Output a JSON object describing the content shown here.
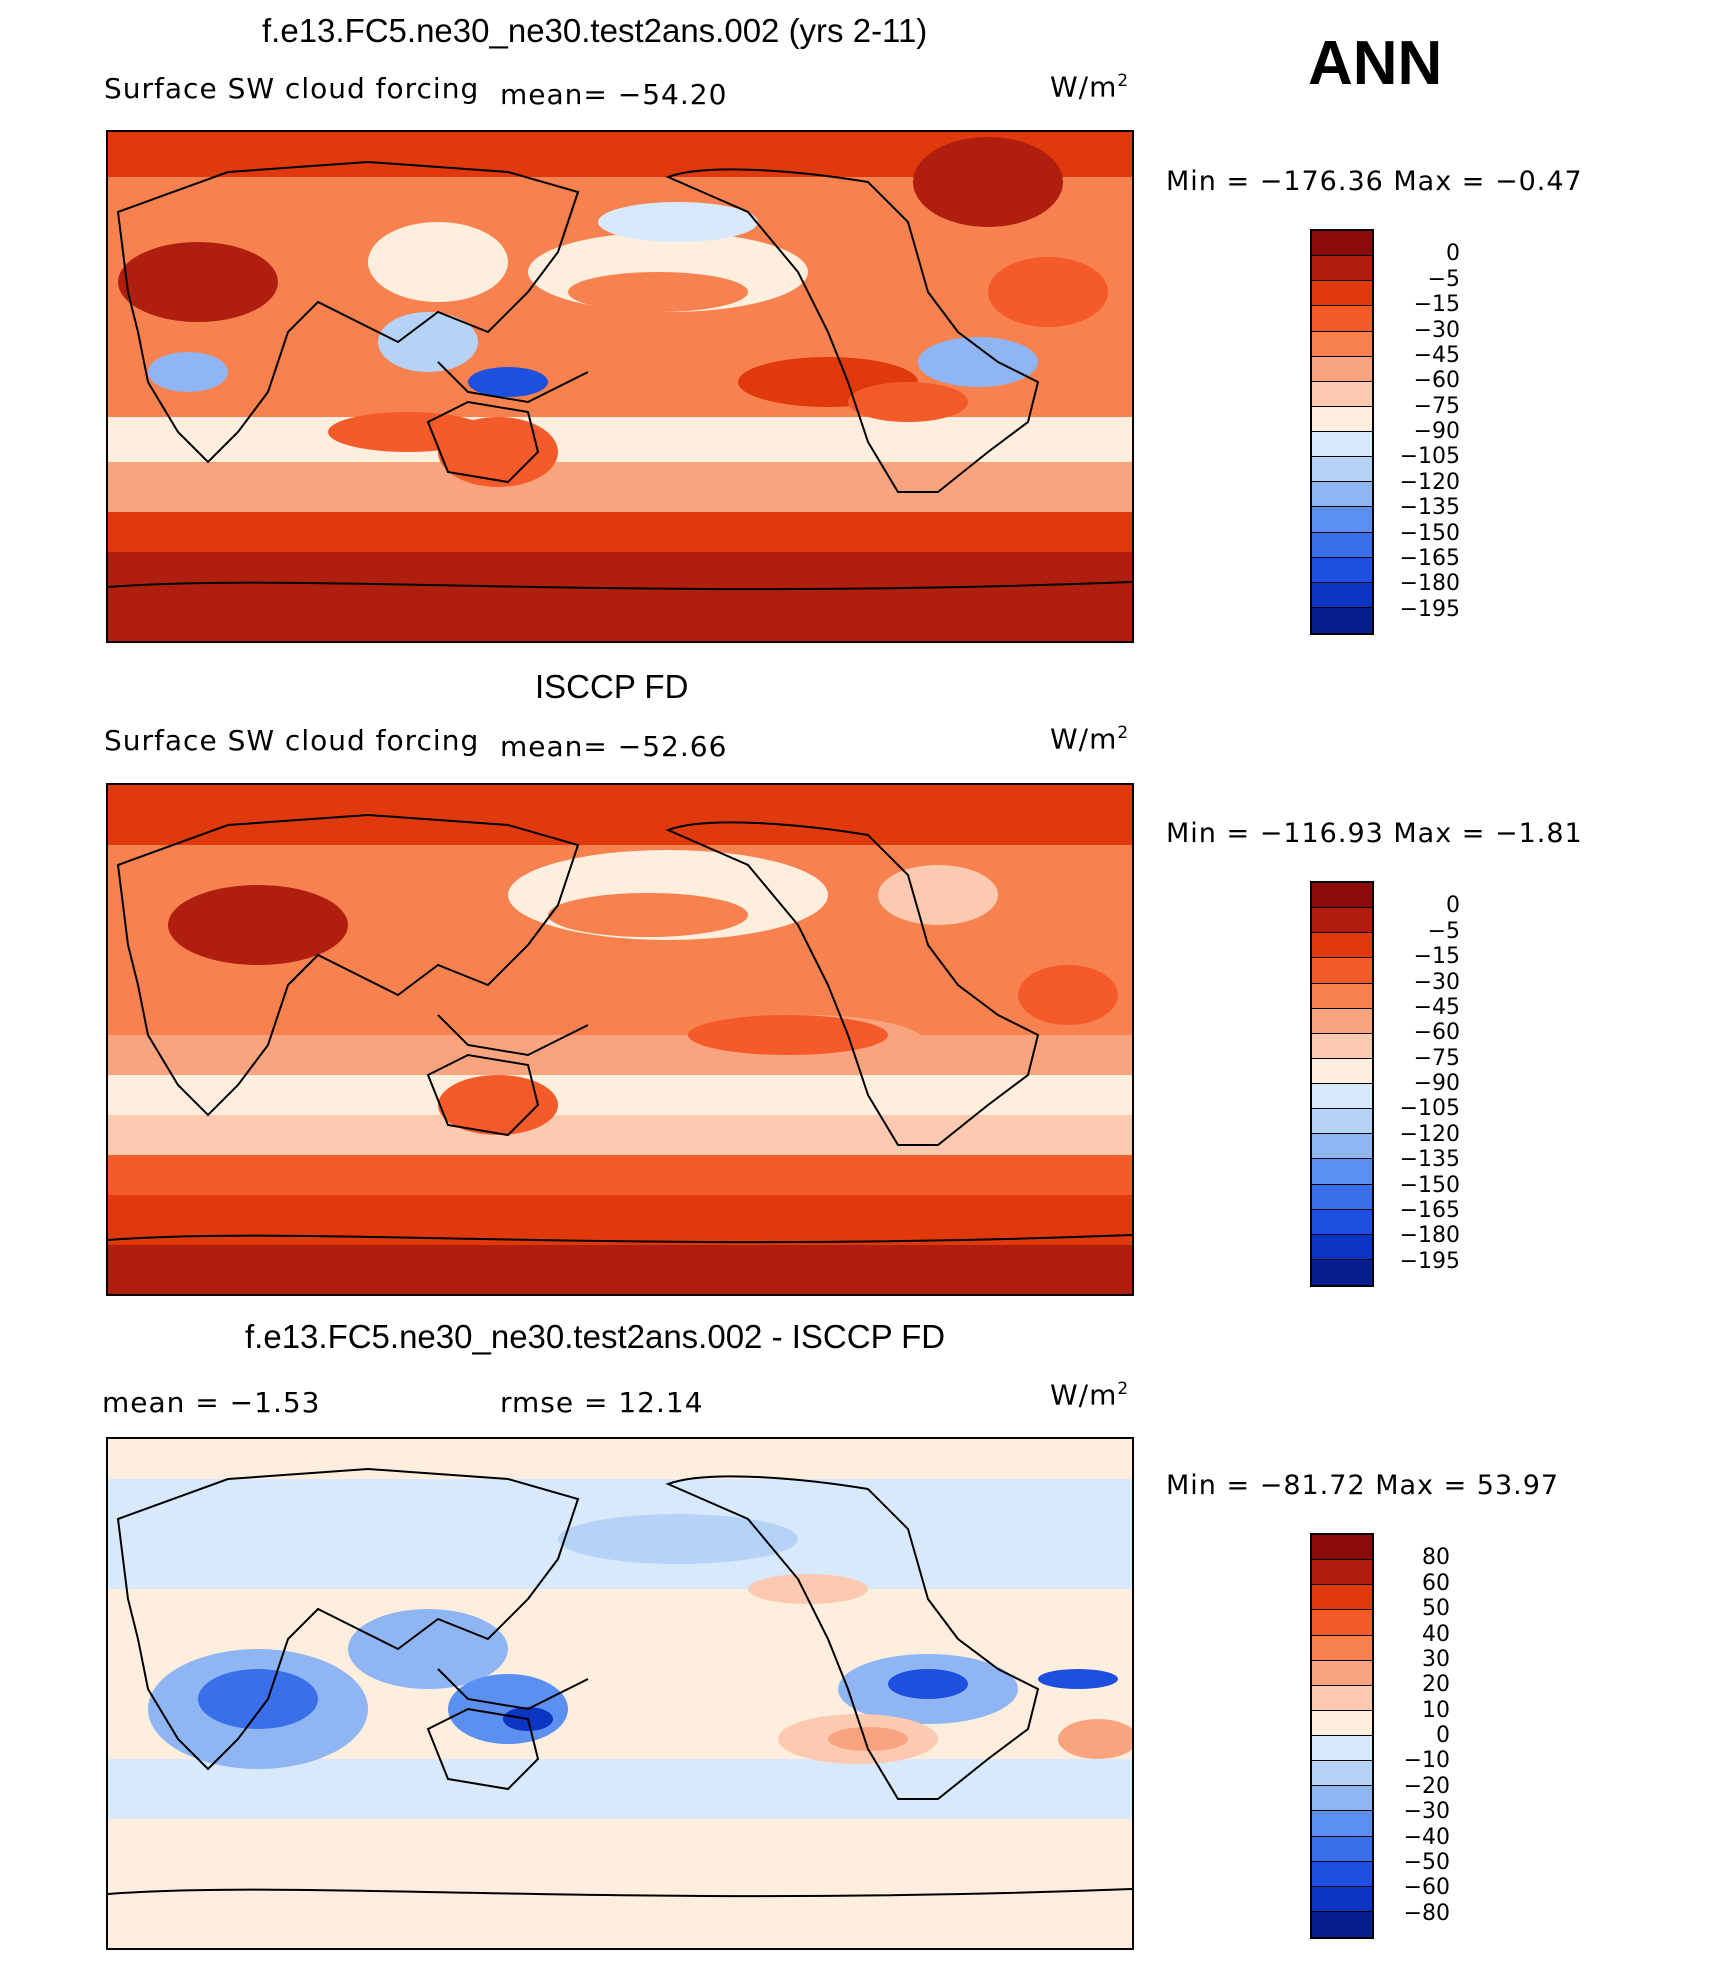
{
  "season_label": "ANN",
  "panels": [
    {
      "title": "f.e13.FC5.ne30_ne30.test2ans.002 (yrs 2-11)",
      "variable": "Surface SW cloud forcing",
      "mean_text": "mean=  −54.20",
      "units": "W/m",
      "units_exp": "2",
      "minmax_text": "Min  =  −176.36  Max  =    −0.47",
      "colorbar_colors": [
        "#8b0a0a",
        "#b01e0f",
        "#e0390b",
        "#f55b2a",
        "#f7824f",
        "#f9a47e",
        "#fccab0",
        "#fdeede",
        "#d7e9fb",
        "#b5d3f7",
        "#8fb6f3",
        "#5b8ff0",
        "#3a6fea",
        "#1e50e0",
        "#0b34c2",
        "#071f8e"
      ],
      "colorbar_labels": [
        "0",
        "−5",
        "−15",
        "−30",
        "−45",
        "−60",
        "−75",
        "−90",
        "−105",
        "−120",
        "−135",
        "−150",
        "−165",
        "−180",
        "−195"
      ]
    },
    {
      "title": "ISCCP FD",
      "variable": "Surface SW cloud forcing",
      "mean_text": "mean=  −52.66",
      "units": "W/m",
      "units_exp": "2",
      "minmax_text": "Min  =  −116.93  Max  =    −1.81",
      "colorbar_colors": [
        "#8b0a0a",
        "#b01e0f",
        "#e0390b",
        "#f55b2a",
        "#f7824f",
        "#f9a47e",
        "#fccab0",
        "#fdeede",
        "#d7e9fb",
        "#b5d3f7",
        "#8fb6f3",
        "#5b8ff0",
        "#3a6fea",
        "#1e50e0",
        "#0b34c2",
        "#071f8e"
      ],
      "colorbar_labels": [
        "0",
        "−5",
        "−15",
        "−30",
        "−45",
        "−60",
        "−75",
        "−90",
        "−105",
        "−120",
        "−135",
        "−150",
        "−165",
        "−180",
        "−195"
      ]
    },
    {
      "title": "f.e13.FC5.ne30_ne30.test2ans.002 - ISCCP FD",
      "mean_text": "mean  =    −1.53",
      "rmse_text": "rmse  =    12.14",
      "units": "W/m",
      "units_exp": "2",
      "minmax_text": "Min  =  −81.72  Max  =    53.97",
      "colorbar_colors": [
        "#8b0a0a",
        "#b01e0f",
        "#e0390b",
        "#f55b2a",
        "#f7824f",
        "#f9a47e",
        "#fccab0",
        "#fdeede",
        "#d7e9fb",
        "#b5d3f7",
        "#8fb6f3",
        "#5b8ff0",
        "#3a6fea",
        "#1e50e0",
        "#0b34c2",
        "#071f8e"
      ],
      "colorbar_labels": [
        "80",
        "60",
        "50",
        "40",
        "30",
        "20",
        "10",
        "0",
        "−10",
        "−20",
        "−30",
        "−40",
        "−50",
        "−60",
        "−80"
      ]
    }
  ]
}
